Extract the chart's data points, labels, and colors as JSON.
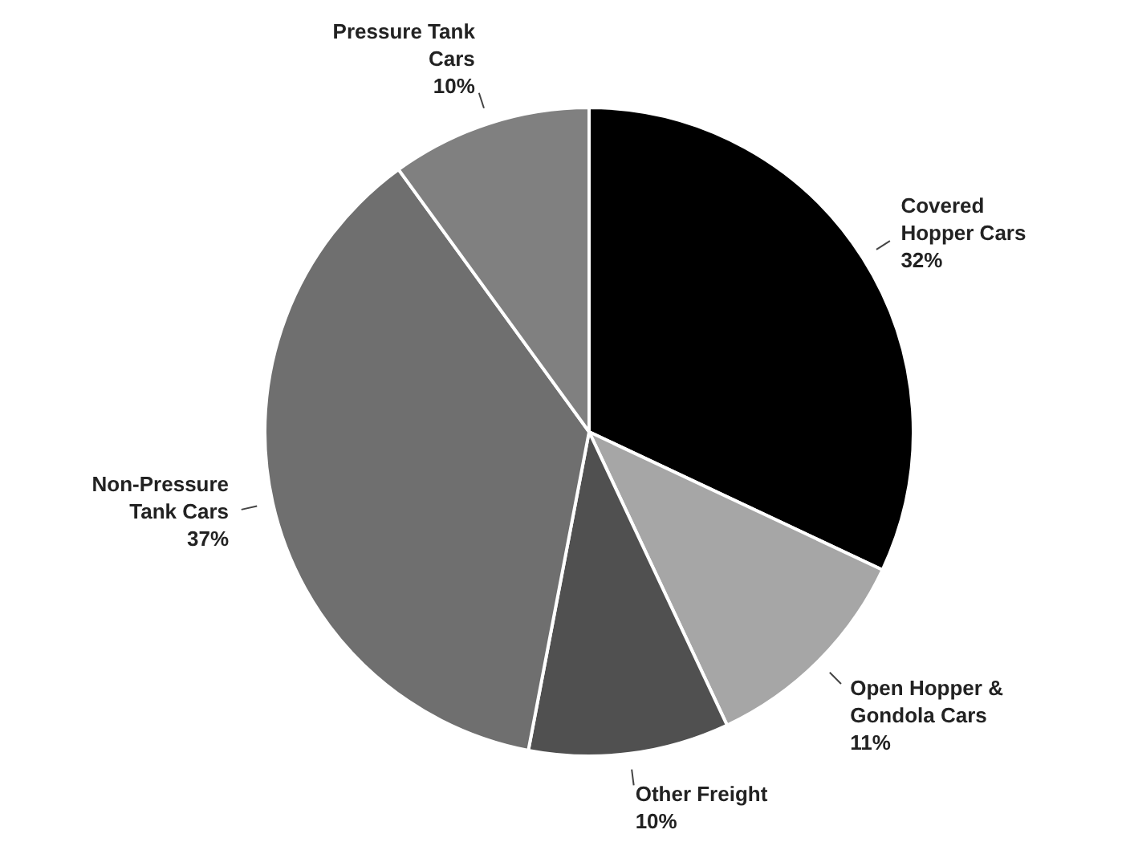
{
  "chart_data": {
    "type": "pie",
    "categories": [
      "Covered Hopper Cars",
      "Open Hopper & Gondola Cars",
      "Other Freight",
      "Non-Pressure Tank Cars",
      "Pressure Tank Cars"
    ],
    "values": [
      32,
      11,
      10,
      37,
      10
    ],
    "colors": [
      "#000000",
      "#a6a6a6",
      "#505050",
      "#6f6f6f",
      "#808080"
    ],
    "value_labels": [
      "32%",
      "11%",
      "10%",
      "37%",
      "10%"
    ],
    "legend": false
  }
}
